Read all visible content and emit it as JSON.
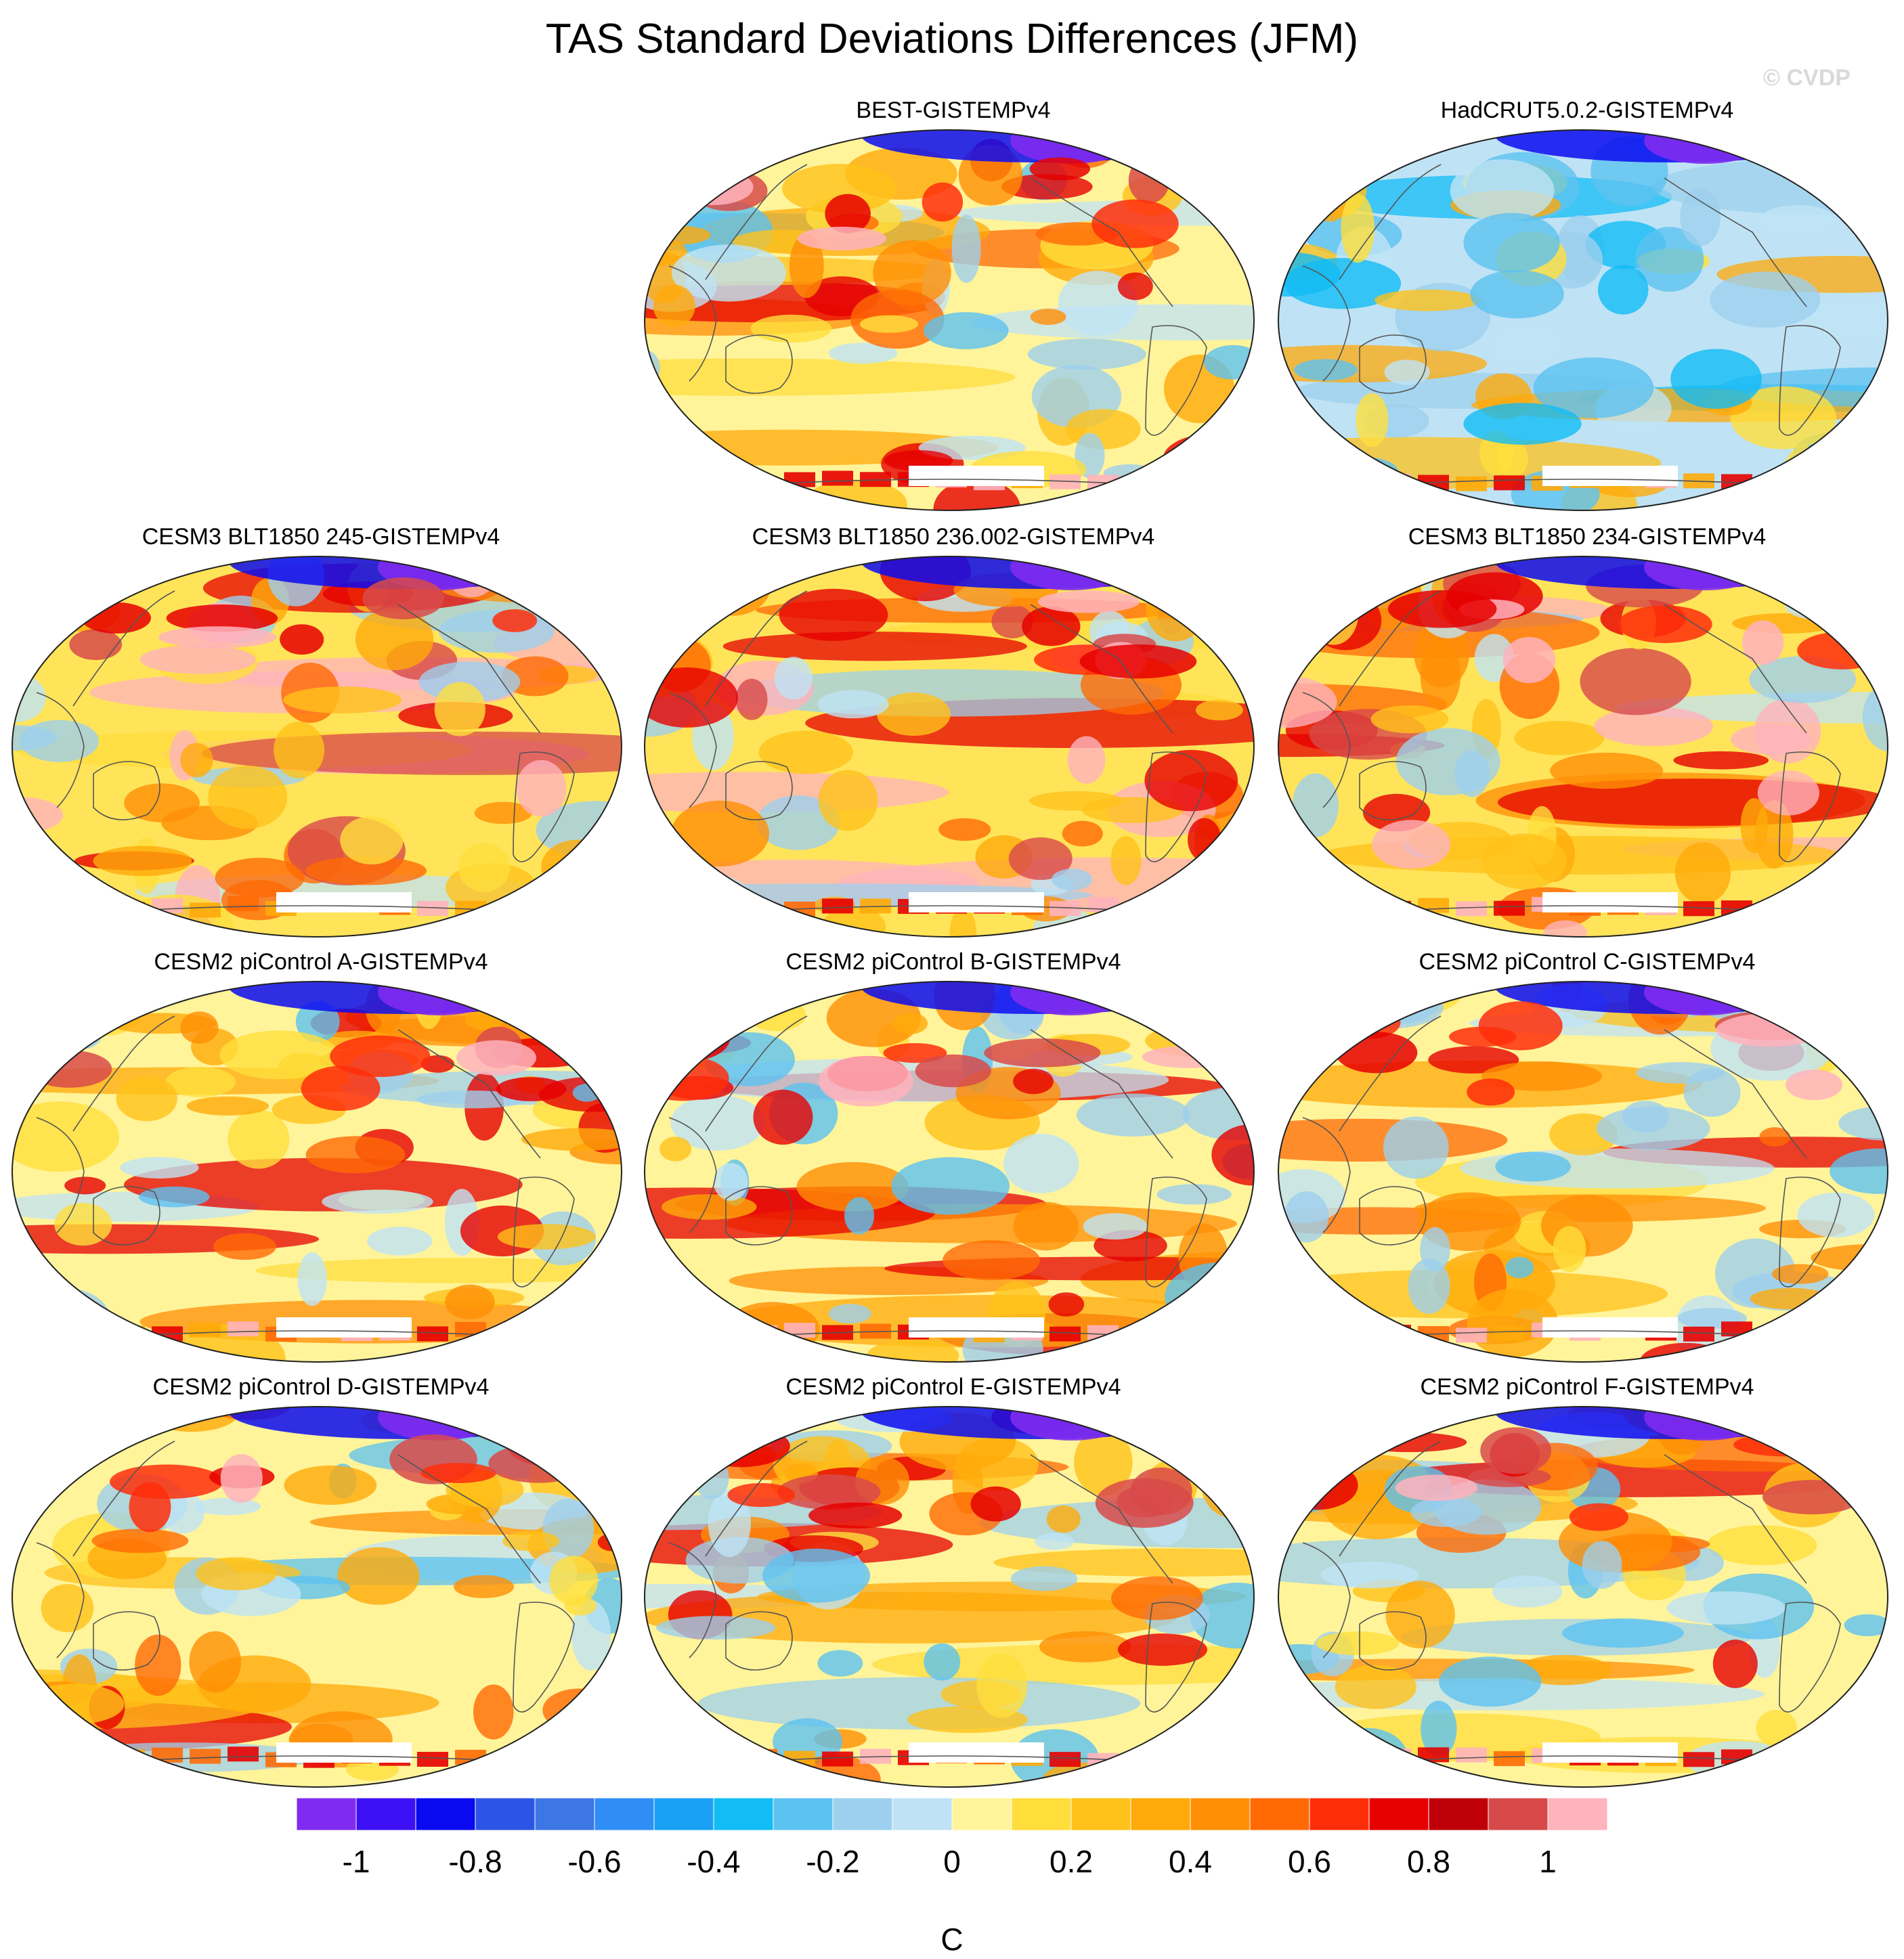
{
  "title": "TAS Standard Deviations Differences (JFM)",
  "watermark": "© CVDP",
  "panels": [
    {
      "id": "best",
      "title": "BEST-GISTEMPv4",
      "slot": "r0c1",
      "anomaly": "mixed"
    },
    {
      "id": "hadcrut",
      "title": "HadCRUT5.0.2-GISTEMPv4",
      "slot": "r0c2",
      "anomaly": "negative"
    },
    {
      "id": "cesm3_245",
      "title": "CESM3 BLT1850 245-GISTEMPv4",
      "slot": "r1c0",
      "anomaly": "positive"
    },
    {
      "id": "cesm3_236",
      "title": "CESM3 BLT1850 236.002-GISTEMPv4",
      "slot": "r1c1",
      "anomaly": "positive"
    },
    {
      "id": "cesm3_234",
      "title": "CESM3 BLT1850 234-GISTEMPv4",
      "slot": "r1c2",
      "anomaly": "positive"
    },
    {
      "id": "cesm2_a",
      "title": "CESM2 piControl A-GISTEMPv4",
      "slot": "r2c0",
      "anomaly": "mixed"
    },
    {
      "id": "cesm2_b",
      "title": "CESM2 piControl B-GISTEMPv4",
      "slot": "r2c1",
      "anomaly": "mixed"
    },
    {
      "id": "cesm2_c",
      "title": "CESM2 piControl C-GISTEMPv4",
      "slot": "r2c2",
      "anomaly": "mixed"
    },
    {
      "id": "cesm2_d",
      "title": "CESM2 piControl D-GISTEMPv4",
      "slot": "r3c0",
      "anomaly": "mixed"
    },
    {
      "id": "cesm2_e",
      "title": "CESM2 piControl E-GISTEMPv4",
      "slot": "r3c1",
      "anomaly": "mixed"
    },
    {
      "id": "cesm2_f",
      "title": "CESM2 piControl F-GISTEMPv4",
      "slot": "r3c2",
      "anomaly": "mixed"
    }
  ],
  "colorbar": {
    "units": "C",
    "levels": [
      -1.1,
      -1.0,
      -0.9,
      -0.8,
      -0.7,
      -0.6,
      -0.5,
      -0.4,
      -0.3,
      -0.2,
      -0.1,
      0,
      0.1,
      0.2,
      0.3,
      0.4,
      0.5,
      0.6,
      0.7,
      0.8,
      0.9,
      1.0,
      1.1
    ],
    "colors": [
      "#7f2bf0",
      "#3d10f5",
      "#0a0af0",
      "#2c55e8",
      "#3d77e6",
      "#2f8df5",
      "#1aa0f5",
      "#12bcf5",
      "#5cc2f0",
      "#9dd0ee",
      "#bfe3f5",
      "#fff49a",
      "#ffde3c",
      "#ffc21a",
      "#ffaa0a",
      "#ff8f05",
      "#ff6a05",
      "#ff2e0a",
      "#e60000",
      "#c00008",
      "#d84a4a",
      "#ffb3bd"
    ],
    "tick_labels": [
      "-1",
      "-0.8",
      "-0.6",
      "-0.4",
      "-0.2",
      "0",
      "0.2",
      "0.4",
      "0.6",
      "0.8",
      "1"
    ],
    "tick_values": [
      -1,
      -0.8,
      -0.6,
      -0.4,
      -0.2,
      0,
      0.2,
      0.4,
      0.6,
      0.8,
      1
    ]
  }
}
